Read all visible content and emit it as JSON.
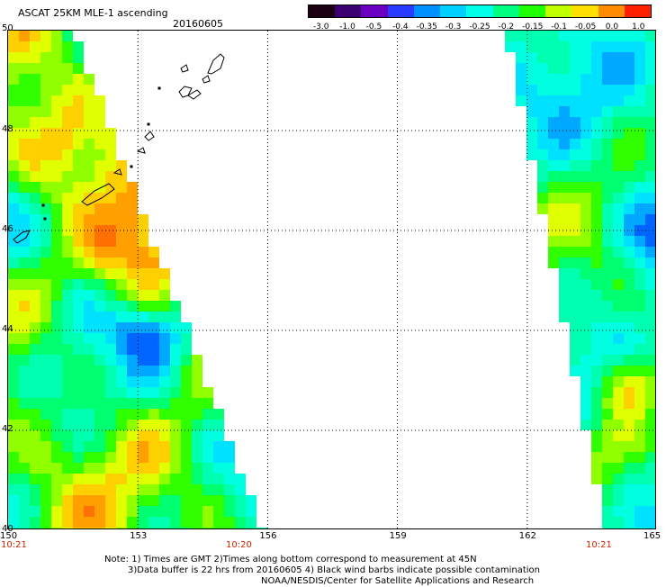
{
  "header": {
    "title": "ASCAT 25KM MLE-1 ascending",
    "date": "20160605"
  },
  "colorbar": {
    "labels": [
      "-3.0",
      "-1.0",
      "-0.5",
      "-0.4",
      "-0.35",
      "-0.3",
      "-0.25",
      "-0.2",
      "-0.15",
      "-0.1",
      "-0.05",
      "0.0",
      "1.0"
    ],
    "colors": [
      "#1a0010",
      "#3a0070",
      "#6a00c0",
      "#2a3aff",
      "#0090ff",
      "#00d0ff",
      "#00ffe8",
      "#00ff80",
      "#20ff00",
      "#c0ff00",
      "#ffe000",
      "#ff8c00",
      "#ff2000"
    ]
  },
  "axes": {
    "x_ticks": [
      "150",
      "153",
      "156",
      "159",
      "162",
      "165"
    ],
    "y_ticks": [
      "50",
      "48",
      "46",
      "44",
      "42",
      "40"
    ],
    "x_range": [
      150,
      165
    ],
    "y_range": [
      40,
      50
    ]
  },
  "times": {
    "left_time": "10:21",
    "mid_time": "10:20",
    "right_time": "10:21"
  },
  "notes": {
    "line1": "Note: 1) Times are GMT 2)Times along bottom correspond to measurement at 45N",
    "line2": "3)Data buffer is 22 hrs from 20160605 4) Black wind barbs indicate possible contamination",
    "line3": "NOAA/NESDIS/Center for Satellite Applications and Research"
  },
  "swaths": {
    "left_edge_lon_at_lat50": 151.6,
    "left_edge_lon_at_lat40": 156.0,
    "right_edge_lon_at_lat50": 161.5,
    "right_edge_lon_at_lat40": 163.8
  }
}
